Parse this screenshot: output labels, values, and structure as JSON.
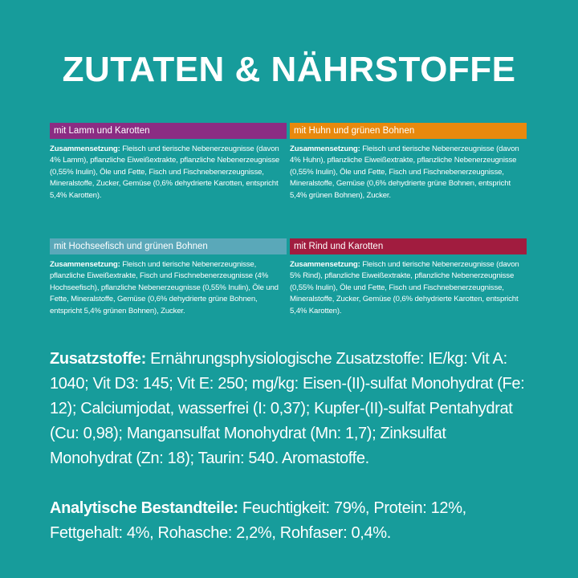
{
  "header": {
    "title": "ZUTATEN & NÄHRSTOFFE"
  },
  "variants": [
    {
      "name": "mit Lamm und Karotten",
      "label": "Zusammensetzung:",
      "text": "Fleisch und tierische Nebenerzeugnisse (davon 4% Lamm), pflanzliche Eiweißextrakte, pflanzliche Nebenerzeugnisse (0,55% Inulin), Öle und Fette, Fisch und Fischnebenerzeugnisse, Mineralstoffe, Zucker, Gemüse (0,6% dehydrierte Karotten, entspricht 5,4% Karotten)."
    },
    {
      "name": "mit Huhn und grünen Bohnen",
      "label": "Zusammensetzung:",
      "text": "Fleisch und tierische Nebenerzeugnisse (davon 4% Huhn), pflanzliche Eiweißextrakte, pflanzliche Nebenerzeugnisse (0,55% Inulin), Öle und Fette, Fisch und Fischnebenerzeugnisse, Mineralstoffe, Gemüse (0,6% dehydrierte grüne Bohnen, entspricht 5,4% grünen Bohnen), Zucker."
    },
    {
      "name": "mit Hochseefisch und grünen Bohnen",
      "label": "Zusammensetzung:",
      "text": "Fleisch und tierische Nebenerzeugnisse, pflanzliche Eiweißextrakte, Fisch und Fischnebenerzeugnisse (4% Hochseefisch), pflanzliche Nebenerzeugnisse (0,55% Inulin), Öle und Fette,  Mineralstoffe, Gemüse (0,6% dehydrierte grüne Bohnen, entspricht 5,4% grünen Bohnen), Zucker."
    },
    {
      "name": "mit Rind und Karotten",
      "label": "Zusammensetzung:",
      "text": "Fleisch und tierische Nebenerzeugnisse (davon 5% Rind), pflanzliche Eiweißextrakte, pflanzliche Nebenerzeugnisse (0,55% Inulin), Öle und Fette, Fisch und Fischnebenerzeugnisse, Mineralstoffe, Zucker, Gemüse (0,6% dehydrierte Karotten, entspricht 5,4% Karotten)."
    }
  ],
  "additives": {
    "label": "Zusatzstoffe:",
    "text": "Ernährungsphysiologische Zusatzstoffe: IE/kg: Vit A: 1040; Vit D3: 145; Vit E: 250; mg/kg: Eisen-(II)-sulfat Monohydrat (Fe: 12); Calciumjodat, wasserfrei (I: 0,37); Kupfer-(II)-sulfat Pentahydrat (Cu: 0,98); Mangansulfat Monohydrat (Mn: 1,7); Zinksulfat Monohydrat (Zn: 18); Taurin: 540. Aromastoffe."
  },
  "analytics": {
    "label": "Analytische Bestandteile:",
    "text": "Feuchtigkeit: 79%, Protein: 12%, Fettgehalt: 4%, Rohasche: 2,2%, Rohfaser: 0,4%."
  }
}
